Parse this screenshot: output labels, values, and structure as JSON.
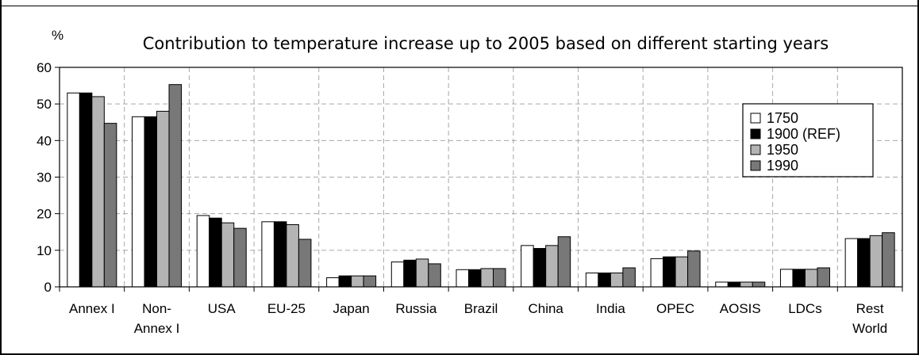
{
  "chart_data": {
    "type": "bar",
    "title": "Contribution to temperature increase up to 2005 based on different starting years",
    "ylabel": "%",
    "xlabel": "",
    "ylim": [
      0,
      60
    ],
    "yticks": [
      "0",
      "10",
      "20",
      "30",
      "40",
      "50",
      "60"
    ],
    "grid": true,
    "legend_position": "top-right",
    "categories": [
      [
        "Annex I"
      ],
      [
        "Non-",
        "Annex I"
      ],
      [
        "USA"
      ],
      [
        "EU-25"
      ],
      [
        "Japan"
      ],
      [
        "Russia"
      ],
      [
        "Brazil"
      ],
      [
        "China"
      ],
      [
        "India"
      ],
      [
        "OPEC"
      ],
      [
        "AOSIS"
      ],
      [
        "LDCs"
      ],
      [
        "Rest",
        "World"
      ]
    ],
    "series": [
      {
        "name": "1750",
        "color": "#ffffff",
        "values": [
          53.0,
          46.5,
          19.5,
          17.8,
          2.5,
          6.8,
          4.7,
          11.3,
          3.8,
          7.7,
          1.3,
          4.8,
          13.2
        ]
      },
      {
        "name": "1900 (REF)",
        "color": "#000000",
        "values": [
          53.0,
          46.5,
          18.8,
          17.8,
          3.0,
          7.3,
          4.7,
          10.5,
          3.8,
          8.2,
          1.3,
          4.8,
          13.2
        ]
      },
      {
        "name": "1950",
        "color": "#b4b4b4",
        "values": [
          52.0,
          48.0,
          17.5,
          17.0,
          3.0,
          7.6,
          5.0,
          11.3,
          3.8,
          8.2,
          1.3,
          4.8,
          14.0
        ]
      },
      {
        "name": "1990",
        "color": "#787878",
        "values": [
          44.7,
          55.3,
          16.0,
          13.0,
          3.0,
          6.3,
          5.0,
          13.7,
          5.2,
          9.8,
          1.3,
          5.2,
          14.8
        ]
      }
    ]
  }
}
